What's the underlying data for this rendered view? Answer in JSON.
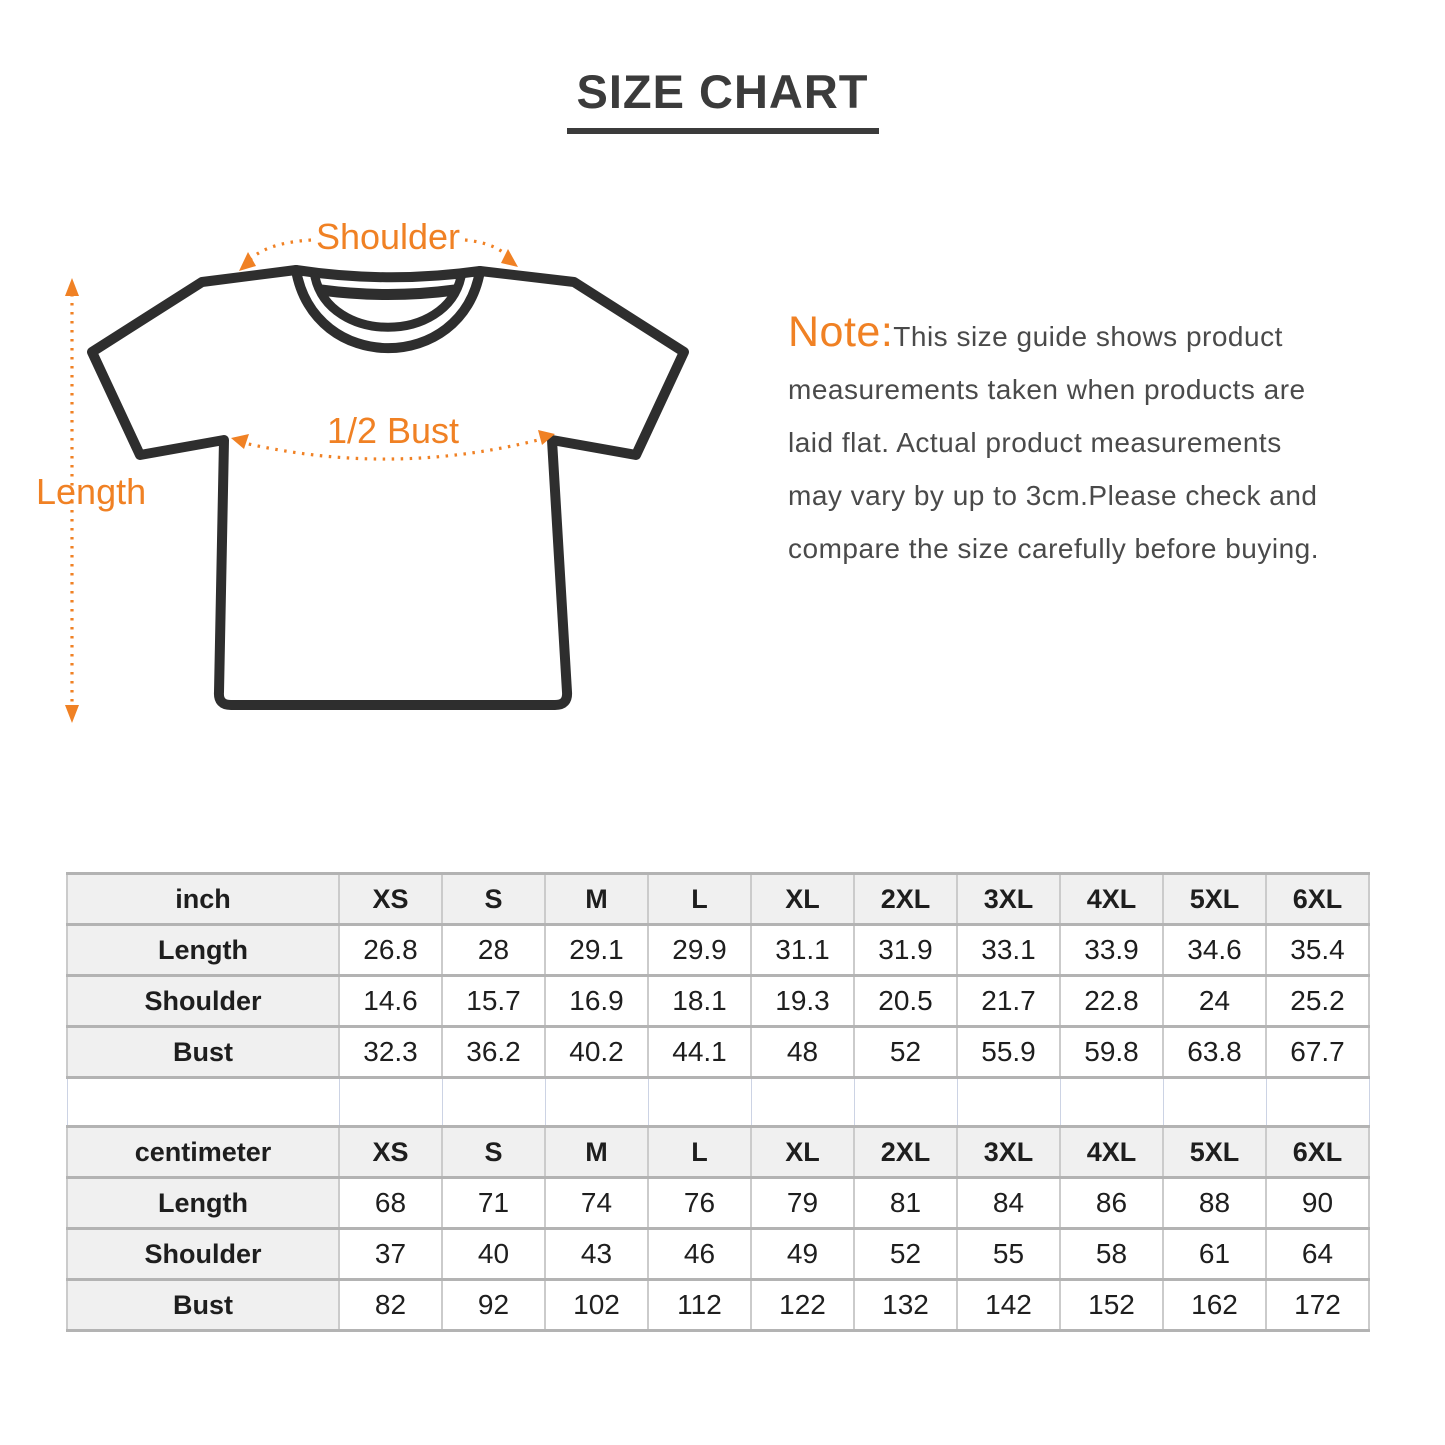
{
  "page": {
    "title": "SIZE CHART"
  },
  "theme": {
    "accent_orange": "#F08124",
    "shirt_outline": "#2e2e2e",
    "title_color": "#3b3b3b",
    "note_text_color": "#4a4a4a",
    "table_header_bg": "#f0f0f0",
    "table_border_gray": "#b3b3b3"
  },
  "diagram": {
    "labels": {
      "shoulder": "Shoulder",
      "bust": "1/2 Bust",
      "length": "Length"
    }
  },
  "note": {
    "prefix": "Note:",
    "lines": [
      "This size guide shows product",
      "measurements taken when products are",
      "laid flat. Actual product measurements",
      "may vary by up to 3cm.Please check and",
      "compare the size carefully before buying."
    ]
  },
  "chart_data": [
    {
      "type": "table",
      "unit": "inch",
      "sizes": [
        "XS",
        "S",
        "M",
        "L",
        "XL",
        "2XL",
        "3XL",
        "4XL",
        "5XL",
        "6XL"
      ],
      "rows": [
        {
          "label": "Length",
          "values": [
            26.8,
            28,
            29.1,
            29.9,
            31.1,
            31.9,
            33.1,
            33.9,
            34.6,
            35.4
          ]
        },
        {
          "label": "Shoulder",
          "values": [
            14.6,
            15.7,
            16.9,
            18.1,
            19.3,
            20.5,
            21.7,
            22.8,
            24,
            25.2
          ]
        },
        {
          "label": "Bust",
          "values": [
            32.3,
            36.2,
            40.2,
            44.1,
            48,
            52,
            55.9,
            59.8,
            63.8,
            67.7
          ]
        }
      ]
    },
    {
      "type": "table",
      "unit": "centimeter",
      "sizes": [
        "XS",
        "S",
        "M",
        "L",
        "XL",
        "2XL",
        "3XL",
        "4XL",
        "5XL",
        "6XL"
      ],
      "rows": [
        {
          "label": "Length",
          "values": [
            68,
            71,
            74,
            76,
            79,
            81,
            84,
            86,
            88,
            90
          ]
        },
        {
          "label": "Shoulder",
          "values": [
            37,
            40,
            43,
            46,
            49,
            52,
            55,
            58,
            61,
            64
          ]
        },
        {
          "label": "Bust",
          "values": [
            82,
            92,
            102,
            112,
            122,
            132,
            142,
            152,
            162,
            172
          ]
        }
      ]
    }
  ]
}
